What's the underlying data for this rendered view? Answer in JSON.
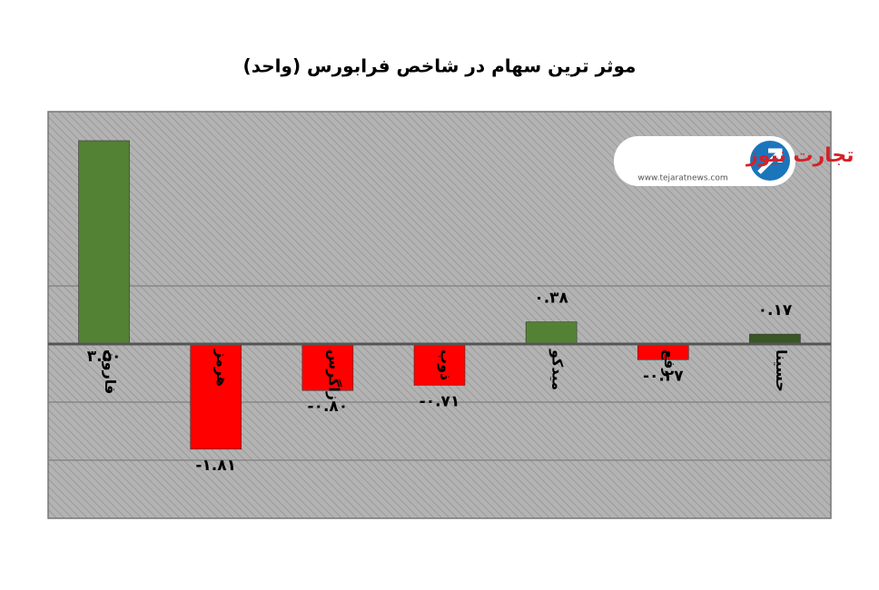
{
  "chart_data": {
    "type": "bar",
    "title": "موثر ترین سهام در شاخص فرابورس (واحد)",
    "categories": [
      "فارون",
      "هرمز",
      "زاگرس",
      "ذوب",
      "میدکو",
      "رفع",
      "حسینا"
    ],
    "values": [
      3.5,
      -1.81,
      -0.8,
      -0.71,
      0.38,
      -0.27,
      0.17
    ],
    "value_labels": [
      "۳.۵۰",
      "-۱.۸۱",
      "-۰.۸۰",
      "-۰.۷۱",
      "۰.۳۸",
      "-۰.۲۷",
      "۰.۱۷"
    ],
    "colors": [
      "#548235",
      "#ff0000",
      "#ff0000",
      "#ff0000",
      "#548235",
      "#ff0000",
      "#385723"
    ],
    "ylim": [
      -3,
      4
    ],
    "yticks": [
      -2,
      -1,
      1
    ],
    "tick_labels": false,
    "grid": true,
    "logo": {
      "name": "تجارت نیوز",
      "url": "www.tejaratnews.com"
    }
  }
}
